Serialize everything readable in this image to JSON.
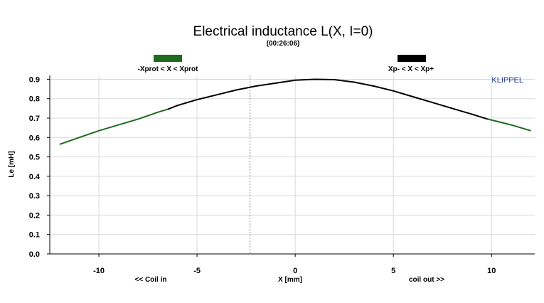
{
  "chart_data": {
    "type": "line",
    "title": "Electrical inductance L(X, I=0)",
    "subtitle": "(00:26:06)",
    "xlabel": "X [mm]",
    "ylabel": "Le [mH]",
    "x_note_left": "<< Coil in",
    "x_note_right": "coil out >>",
    "brand": "KLIPPEL",
    "xlim": [
      -12.5,
      12.2
    ],
    "ylim": [
      0.0,
      0.92
    ],
    "xticks": [
      -10,
      -5,
      0,
      5,
      10
    ],
    "yticks": [
      0.0,
      0.1,
      0.2,
      0.3,
      0.4,
      0.5,
      0.6,
      0.7,
      0.8,
      0.9
    ],
    "ytick_labels": [
      "0.0",
      "0.1",
      "0.2",
      "0.3",
      "0.4",
      "0.5",
      "0.6",
      "0.7",
      "0.8",
      "0.9"
    ],
    "grid": true,
    "marker_line_x": -2.3,
    "legend_placement": "top",
    "series": [
      {
        "name": "-Xprot < X < Xprot",
        "color": "#1f6b1f",
        "x": [
          -12,
          -11,
          -10,
          -9,
          -8,
          -7,
          -6.5
        ],
        "y": [
          0.565,
          0.6,
          0.635,
          0.665,
          0.695,
          0.73,
          0.745
        ]
      },
      {
        "name": "Xp- < X < Xp+",
        "color": "#000000",
        "x": [
          -6.5,
          -6,
          -5,
          -4,
          -3,
          -2,
          -1,
          0,
          1,
          2,
          3,
          4,
          5,
          6,
          7,
          8,
          9,
          9.8
        ],
        "y": [
          0.745,
          0.765,
          0.795,
          0.82,
          0.845,
          0.865,
          0.88,
          0.895,
          0.9,
          0.898,
          0.885,
          0.865,
          0.84,
          0.81,
          0.78,
          0.75,
          0.72,
          0.695
        ]
      },
      {
        "name": "",
        "color": "#1f6b1f",
        "x": [
          9.8,
          11,
          12
        ],
        "y": [
          0.695,
          0.665,
          0.635
        ]
      }
    ]
  },
  "colors": {
    "protected_range": "#1f6b1f",
    "working_range": "#000000",
    "brand": "#1f3a8a"
  }
}
